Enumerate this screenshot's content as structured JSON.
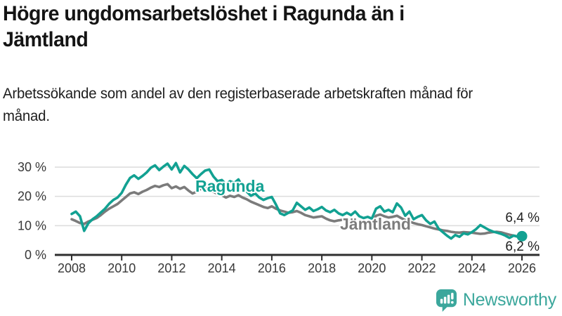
{
  "header": {
    "title": "Högre ungdomsarbetslöshet i Ragunda än i Jämtland",
    "subtitle": "Arbetssökande som andel av den registerbaserade arbetskraften månad för månad."
  },
  "footer": {
    "brand": "Newsworthy",
    "logo_icon": "bar-chart-speech-bubble-icon"
  },
  "colors": {
    "ragunda_line": "#12a192",
    "jamtland_line": "#7b7b7b",
    "axis": "#2e2e2e",
    "grid": "#dcdcdc",
    "tick_label": "#383838",
    "value_label": "#1f1f1f",
    "brand_teal": "#3ba79c",
    "background": "#ffffff"
  },
  "chart_data": {
    "type": "line",
    "title": "Högre ungdomsarbetslöshet i Ragunda än i Jämtland",
    "xlabel": "",
    "ylabel": "",
    "grid": "horizontal",
    "legend_position": "inline-labels",
    "xlim": [
      2007.3,
      2026.7
    ],
    "ylim": [
      0,
      33
    ],
    "x_ticks": [
      2008,
      2010,
      2012,
      2014,
      2016,
      2018,
      2020,
      2022,
      2024,
      2026
    ],
    "y_ticks": [
      {
        "value": 0,
        "label": "0 %"
      },
      {
        "value": 10,
        "label": "10 %"
      },
      {
        "value": 20,
        "label": "20 %"
      },
      {
        "value": 30,
        "label": "30 %"
      }
    ],
    "x_start": 2008.0,
    "x_step": 0.16667,
    "series": [
      {
        "name": "Jämtland",
        "color": "#7b7b7b",
        "end_label": "6,2 %",
        "end_value": 6.2,
        "values": [
          12.2,
          11.6,
          10.9,
          10.6,
          11.4,
          12.0,
          12.6,
          13.6,
          14.8,
          15.8,
          16.6,
          17.4,
          18.6,
          19.8,
          21.0,
          21.4,
          20.8,
          21.6,
          22.2,
          23.0,
          23.6,
          23.2,
          23.8,
          24.2,
          22.8,
          23.4,
          22.6,
          23.2,
          22.0,
          21.0,
          21.6,
          22.6,
          23.0,
          22.4,
          21.6,
          20.8,
          20.4,
          19.6,
          20.2,
          19.8,
          20.4,
          19.6,
          19.0,
          18.2,
          17.6,
          17.0,
          16.4,
          16.0,
          16.6,
          15.8,
          15.2,
          14.8,
          14.4,
          14.6,
          15.0,
          14.4,
          13.6,
          13.2,
          12.8,
          13.0,
          13.2,
          12.4,
          11.8,
          11.5,
          11.8,
          12.0,
          11.6,
          11.2,
          10.9,
          10.6,
          10.4,
          10.7,
          11.0,
          13.4,
          13.8,
          13.2,
          12.8,
          13.0,
          13.4,
          12.6,
          11.9,
          11.4,
          10.9,
          10.5,
          10.2,
          9.8,
          9.4,
          9.0,
          8.7,
          8.4,
          8.2,
          7.9,
          7.7,
          7.6,
          7.8,
          7.7,
          7.6,
          7.4,
          7.2,
          7.3,
          7.6,
          7.8,
          7.9,
          7.7,
          7.3,
          6.9,
          6.6,
          6.3,
          6.2
        ]
      },
      {
        "name": "Ragunda",
        "color": "#12a192",
        "end_label": "6,4 %",
        "end_value": 6.4,
        "end_dot": true,
        "values": [
          14.0,
          14.8,
          13.2,
          8.2,
          10.8,
          12.2,
          13.2,
          14.5,
          15.8,
          17.5,
          18.8,
          19.6,
          21.2,
          24.0,
          26.3,
          27.2,
          26.0,
          27.0,
          28.2,
          29.8,
          30.6,
          29.0,
          30.2,
          31.2,
          29.2,
          31.4,
          28.2,
          30.4,
          29.2,
          27.6,
          26.2,
          27.6,
          28.8,
          29.2,
          26.8,
          25.2,
          25.6,
          24.2,
          25.2,
          24.6,
          25.8,
          23.4,
          21.6,
          20.2,
          21.0,
          19.6,
          18.8,
          19.4,
          19.8,
          17.2,
          14.2,
          13.6,
          14.4,
          15.2,
          17.8,
          16.6,
          15.4,
          16.2,
          15.0,
          15.6,
          16.4,
          15.2,
          14.6,
          15.4,
          14.2,
          13.6,
          14.4,
          13.6,
          14.8,
          13.2,
          12.6,
          13.0,
          12.4,
          15.8,
          16.6,
          14.8,
          15.4,
          14.6,
          17.6,
          16.2,
          13.4,
          14.8,
          12.2,
          13.0,
          13.6,
          11.8,
          10.6,
          11.4,
          9.0,
          7.8,
          6.6,
          5.6,
          6.8,
          6.2,
          7.4,
          7.0,
          7.8,
          8.8,
          10.2,
          9.4,
          8.6,
          8.0,
          7.6,
          7.2,
          6.6,
          5.8,
          6.6,
          6.2,
          6.4
        ]
      }
    ],
    "series_inline_labels": [
      {
        "text": "Ragunda",
        "color": "#12a192",
        "x": 278,
        "y": 63
      },
      {
        "text": "Jämtland",
        "color": "#7b7b7b",
        "x": 484,
        "y": 117
      }
    ]
  }
}
